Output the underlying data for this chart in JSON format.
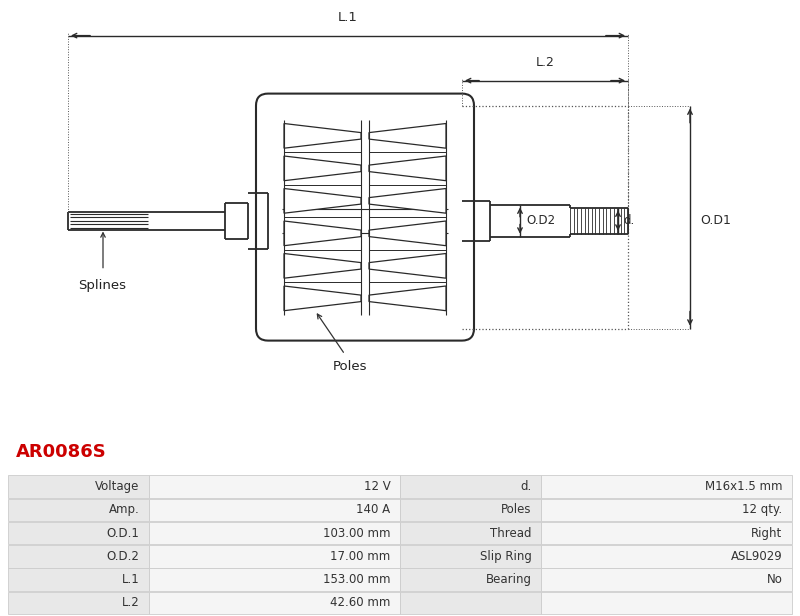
{
  "title": "AR0086S",
  "title_color": "#cc0000",
  "bg_color": "#ffffff",
  "table_data": [
    [
      "Voltage",
      "12 V",
      "d.",
      "M16x1.5 mm"
    ],
    [
      "Amp.",
      "140 A",
      "Poles",
      "12 qty."
    ],
    [
      "O.D.1",
      "103.00 mm",
      "Thread",
      "Right"
    ],
    [
      "O.D.2",
      "17.00 mm",
      "Slip Ring",
      "ASL9029"
    ],
    [
      "L.1",
      "153.00 mm",
      "Bearing",
      "No"
    ],
    [
      "L.2",
      "42.60 mm",
      "",
      ""
    ]
  ],
  "label_bg": "#e8e8e8",
  "value_bg": "#f5f5f5",
  "line_color": "#2a2a2a",
  "dim_color": "#2a2a2a",
  "dot_line_color": "#555555"
}
